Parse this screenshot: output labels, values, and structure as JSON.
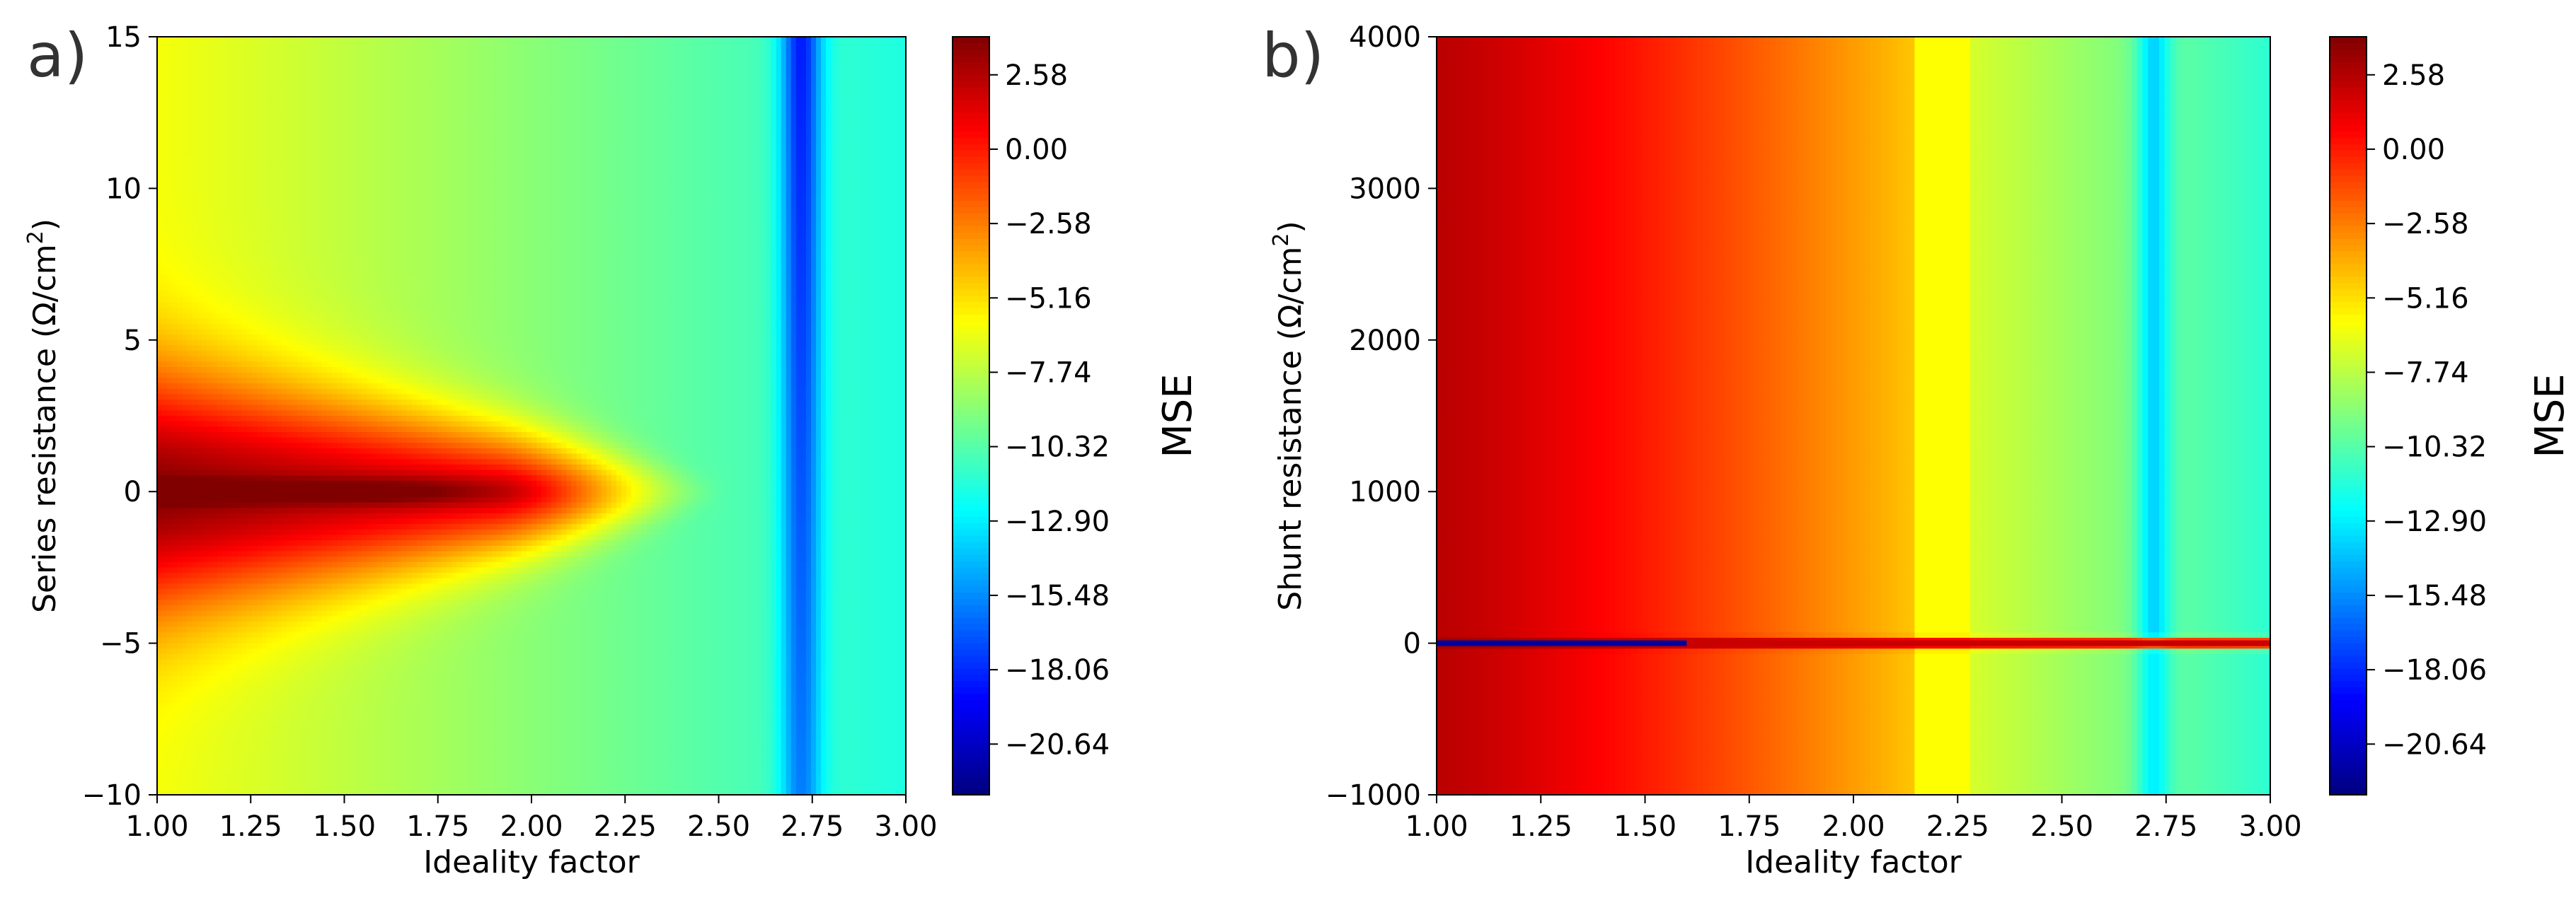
{
  "chart_data": [
    {
      "type": "heatmap",
      "panel_label": "a)",
      "xlabel": "Ideality factor",
      "ylabel": "Series resistance (Ω/cm²)",
      "ylabel_parts": {
        "main": "Series resistance (Ω/cm",
        "sup": "2",
        "tail": ")"
      },
      "xlim": [
        1.0,
        3.0
      ],
      "ylim": [
        -10,
        15
      ],
      "x_ticks": [
        "1.00",
        "1.25",
        "1.50",
        "1.75",
        "2.00",
        "2.25",
        "2.50",
        "2.75",
        "3.00"
      ],
      "x_tick_values": [
        1.0,
        1.25,
        1.5,
        1.75,
        2.0,
        2.25,
        2.5,
        2.75,
        3.0
      ],
      "y_ticks": [
        "−10",
        "−5",
        "0",
        "5",
        "10",
        "15"
      ],
      "y_tick_values": [
        -10,
        -5,
        0,
        5,
        10,
        15
      ],
      "colorbar": {
        "label": "MSE",
        "ticks": [
          "2.58",
          "0.00",
          "−2.58",
          "−5.16",
          "−7.74",
          "−10.32",
          "−12.90",
          "−15.48",
          "−18.06",
          "−20.64"
        ],
        "tick_values": [
          2.58,
          0.0,
          -2.58,
          -5.16,
          -7.74,
          -10.32,
          -12.9,
          -15.48,
          -18.06,
          -20.64
        ],
        "range": [
          -22.4,
          3.9
        ],
        "colormap": "jet"
      },
      "field_description": "MSE ~ -6 near ideality 1.0 decreasing to ~-12 at 3.0; sharp minimum valley (~-17) near ideality 2.70-2.75; high MSE ridge (~+3) along series resistance 0 for ideality 1.0-2.2"
    },
    {
      "type": "heatmap",
      "panel_label": "b)",
      "xlabel": "Ideality factor",
      "ylabel": "Shunt resistance (Ω/cm²)",
      "ylabel_parts": {
        "main": "Shunt resistance (Ω/cm",
        "sup": "2",
        "tail": ")"
      },
      "xlim": [
        1.0,
        3.0
      ],
      "ylim": [
        -1000,
        4000
      ],
      "x_ticks": [
        "1.00",
        "1.25",
        "1.50",
        "1.75",
        "2.00",
        "2.25",
        "2.50",
        "2.75",
        "3.00"
      ],
      "x_tick_values": [
        1.0,
        1.25,
        1.5,
        1.75,
        2.0,
        2.25,
        2.5,
        2.75,
        3.0
      ],
      "y_ticks": [
        "−1000",
        "0",
        "1000",
        "2000",
        "3000",
        "4000"
      ],
      "y_tick_values": [
        -1000,
        0,
        1000,
        2000,
        3000,
        4000
      ],
      "colorbar": {
        "label": "MSE",
        "ticks": [
          "2.58",
          "0.00",
          "−2.58",
          "−5.16",
          "−7.74",
          "−10.32",
          "−12.90",
          "−15.48",
          "−18.06",
          "−20.64"
        ],
        "tick_values": [
          2.58,
          0.0,
          -2.58,
          -5.16,
          -7.74,
          -10.32,
          -12.9,
          -15.48,
          -18.06,
          -20.64
        ],
        "range": [
          -22.4,
          3.9
        ],
        "colormap": "jet"
      },
      "field_description": "MSE ~ +2.5 near ideality 1.0 decreasing to ~-11 at 3.0; step near ideality 2.15; minimum (~-14) near ideality 2.72; thin high-MSE line along shunt resistance 0"
    }
  ]
}
